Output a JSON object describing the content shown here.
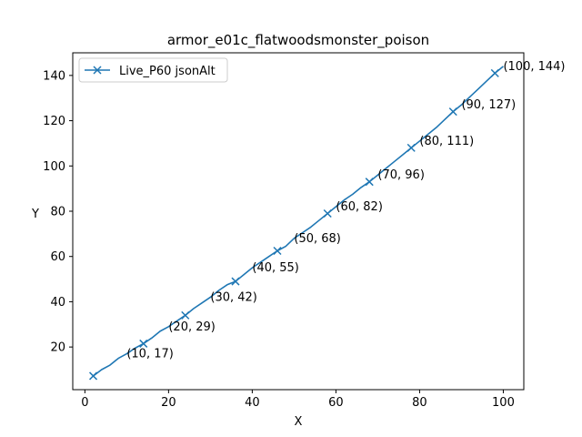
{
  "chart_data": {
    "type": "line",
    "title": "armor_e01c_flatwoodsmonster_poison",
    "xlabel": "X",
    "ylabel": "Y",
    "xlim": [
      -2.9,
      104.9
    ],
    "ylim": [
      1.15,
      150.0
    ],
    "xticks": [
      0,
      20,
      40,
      60,
      80,
      100
    ],
    "yticks": [
      20,
      40,
      60,
      80,
      100,
      120,
      140
    ],
    "grid": false,
    "legend_position": "top-left",
    "line_color": "#1f77b4",
    "series": [
      {
        "name": "Live_P60 jsonAlt",
        "x": [
          2,
          4,
          6,
          8,
          10,
          12,
          14,
          16,
          18,
          20,
          22,
          24,
          26,
          28,
          30,
          32,
          34,
          36,
          38,
          40,
          42,
          44,
          46,
          48,
          50,
          52,
          54,
          56,
          58,
          60,
          62,
          64,
          66,
          68,
          70,
          72,
          74,
          76,
          78,
          80,
          82,
          84,
          86,
          88,
          90,
          92,
          94,
          96,
          98,
          100
        ],
        "y": [
          7.2,
          10.0,
          12.0,
          15.0,
          17.0,
          19.5,
          21.5,
          24.0,
          27.0,
          29.0,
          31.5,
          34.0,
          37.0,
          39.5,
          42.0,
          45.0,
          47.5,
          49.0,
          52.0,
          55.0,
          57.5,
          60.0,
          62.5,
          64.5,
          68.0,
          70.5,
          73.0,
          76.0,
          79.0,
          82.0,
          85.0,
          87.5,
          90.5,
          93.0,
          96.0,
          99.0,
          102.0,
          105.0,
          108.0,
          111.0,
          114.0,
          117.0,
          120.5,
          124.0,
          127.0,
          130.5,
          134.0,
          137.5,
          141.0,
          144.0
        ],
        "marker": "x",
        "marker_x": [
          2,
          14,
          24,
          36,
          46,
          58,
          68,
          78,
          88,
          98
        ],
        "marker_y": [
          7.2,
          21.5,
          34.0,
          49.0,
          62.5,
          79.0,
          93.0,
          108.0,
          124.0,
          141.0
        ]
      }
    ],
    "annotations": [
      {
        "text": "(10, 17)",
        "x": 10,
        "y": 17
      },
      {
        "text": "(20, 29)",
        "x": 20,
        "y": 29
      },
      {
        "text": "(30, 42)",
        "x": 30,
        "y": 42
      },
      {
        "text": "(40, 55)",
        "x": 40,
        "y": 55
      },
      {
        "text": "(50, 68)",
        "x": 50,
        "y": 68
      },
      {
        "text": "(60, 82)",
        "x": 60,
        "y": 82
      },
      {
        "text": "(70, 96)",
        "x": 70,
        "y": 96
      },
      {
        "text": "(80, 111)",
        "x": 80,
        "y": 111
      },
      {
        "text": "(90, 127)",
        "x": 90,
        "y": 127
      },
      {
        "text": "(100, 144)",
        "x": 100,
        "y": 144
      }
    ]
  }
}
